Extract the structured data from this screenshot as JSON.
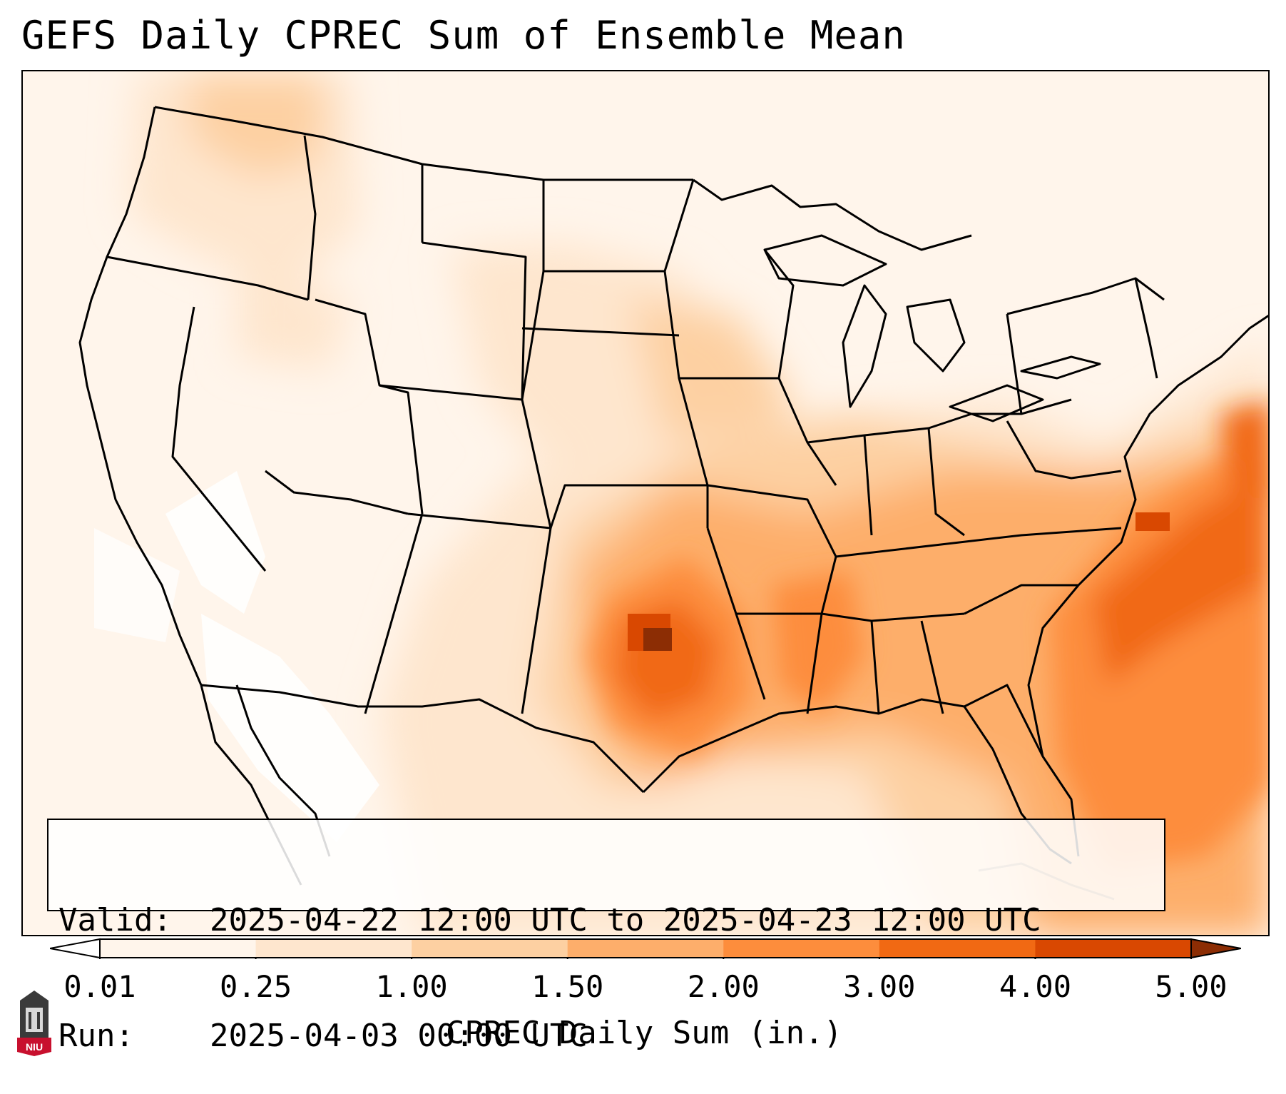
{
  "title": "GEFS Daily CPREC Sum of Ensemble Mean",
  "info": {
    "valid_label": "Valid:",
    "valid_value": "2025-04-22 12:00 UTC to 2025-04-23 12:00 UTC",
    "run_label": "Run:",
    "run_value": "2025-04-03 00:00 UTC"
  },
  "colorbar": {
    "label": "CPREC Daily Sum (in.)",
    "ticks": [
      "0.01",
      "0.25",
      "1.00",
      "1.50",
      "2.00",
      "3.00",
      "4.00",
      "5.00"
    ],
    "colors": [
      "#fff5eb",
      "#fee6ce",
      "#fdd0a2",
      "#fdae6b",
      "#fd8d3c",
      "#f16913",
      "#d94801",
      "#8c2d04"
    ]
  },
  "logo": {
    "text": "NIU"
  }
}
